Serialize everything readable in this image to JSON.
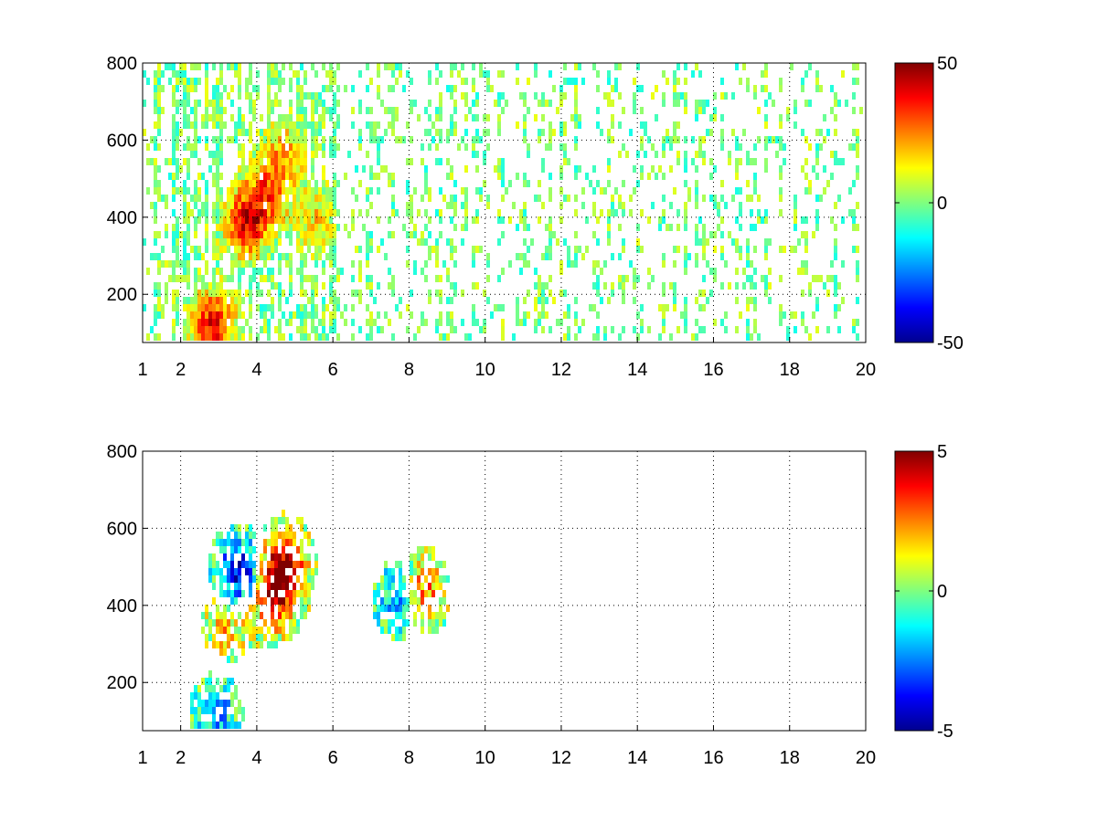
{
  "chart_data": [
    {
      "type": "heatmap",
      "title": "",
      "xlabel": "",
      "ylabel": "",
      "xlim": [
        1,
        20
      ],
      "ylim": [
        75,
        800
      ],
      "xticks": [
        "1",
        "2",
        "4",
        "6",
        "8",
        "10",
        "12",
        "14",
        "16",
        "18",
        "20"
      ],
      "yticks": [
        "200",
        "400",
        "600",
        "800"
      ],
      "grid": true,
      "grid_style": "dotted",
      "colormap": "jet",
      "colorbar": {
        "min": -50,
        "max": 50,
        "ticks": [
          "50",
          "0",
          "-50"
        ]
      },
      "hotspots": [
        {
          "x": 3.7,
          "y": 400,
          "value": 40
        },
        {
          "x": 2.8,
          "y": 130,
          "value": 38
        },
        {
          "x": 4.3,
          "y": 480,
          "value": 25
        },
        {
          "x": 4.7,
          "y": 580,
          "value": 18
        },
        {
          "x": 5.5,
          "y": 400,
          "value": 15
        }
      ]
    },
    {
      "type": "heatmap",
      "title": "",
      "xlabel": "",
      "ylabel": "",
      "xlim": [
        1,
        20
      ],
      "ylim": [
        75,
        800
      ],
      "xticks": [
        "1",
        "2",
        "4",
        "6",
        "8",
        "10",
        "12",
        "14",
        "16",
        "18",
        "20"
      ],
      "yticks": [
        "200",
        "400",
        "600",
        "800"
      ],
      "grid": true,
      "grid_style": "dotted",
      "colormap": "jet",
      "colorbar": {
        "min": -5,
        "max": 5,
        "ticks": [
          "5",
          "0",
          "-5"
        ]
      },
      "hotspots": [
        {
          "x": 4.4,
          "y": 440,
          "value": 4.5
        },
        {
          "x": 4.7,
          "y": 520,
          "value": 3.5
        },
        {
          "x": 3.5,
          "y": 490,
          "value": -4.5
        },
        {
          "x": 2.9,
          "y": 130,
          "value": -2.0
        },
        {
          "x": 3.2,
          "y": 370,
          "value": 2.0
        },
        {
          "x": 7.8,
          "y": 430,
          "value": -3.5
        },
        {
          "x": 8.2,
          "y": 440,
          "value": 4.0
        }
      ]
    }
  ]
}
